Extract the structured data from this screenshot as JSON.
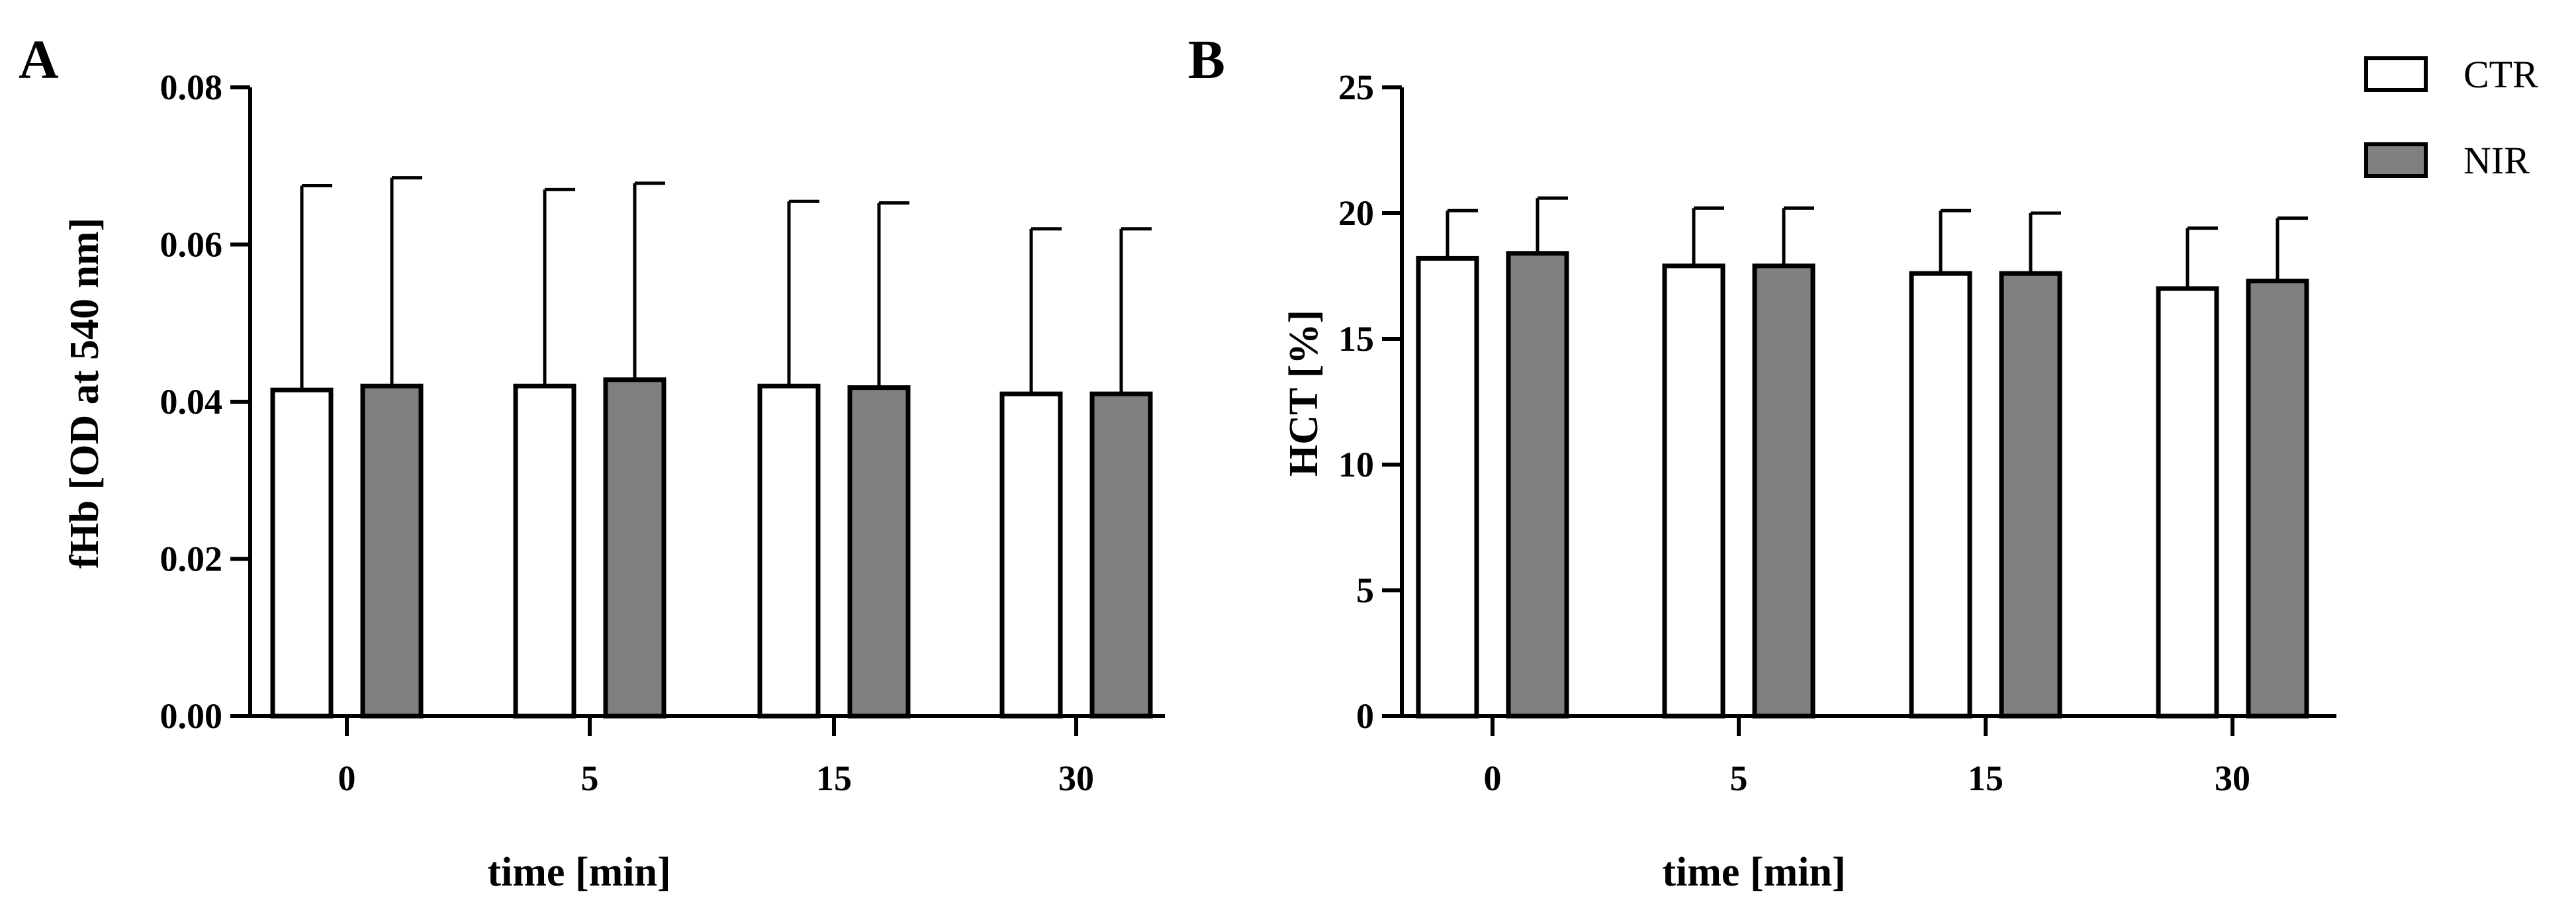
{
  "legend": {
    "placement": "top-right",
    "items": [
      {
        "label": "CTR",
        "color": "#ffffff"
      },
      {
        "label": "NIR",
        "color": "#808080"
      }
    ]
  },
  "chart_data": [
    {
      "type": "bar",
      "panel_label": "A",
      "title": "",
      "xlabel": "time [min]",
      "ylabel": "fHb [OD at 540 nm]",
      "categories": [
        "0",
        "5",
        "15",
        "30"
      ],
      "ylim": [
        0,
        0.08
      ],
      "yticks": [
        "0.00",
        "0.02",
        "0.04",
        "0.06",
        "0.08"
      ],
      "grid": false,
      "series": [
        {
          "name": "CTR",
          "color": "#ffffff",
          "values": [
            0.0415,
            0.042,
            0.042,
            0.041
          ],
          "errors": [
            0.026,
            0.025,
            0.0235,
            0.021
          ]
        },
        {
          "name": "NIR",
          "color": "#808080",
          "values": [
            0.042,
            0.0428,
            0.0418,
            0.041
          ],
          "errors": [
            0.0265,
            0.025,
            0.0235,
            0.021
          ]
        }
      ]
    },
    {
      "type": "bar",
      "panel_label": "B",
      "title": "",
      "xlabel": "time [min]",
      "ylabel": "HCT [%]",
      "categories": [
        "0",
        "5",
        "15",
        "30"
      ],
      "ylim": [
        0,
        25
      ],
      "yticks": [
        "0",
        "5",
        "10",
        "15",
        "20",
        "25"
      ],
      "grid": false,
      "series": [
        {
          "name": "CTR",
          "color": "#ffffff",
          "values": [
            18.2,
            17.9,
            17.6,
            17.0
          ],
          "errors": [
            1.9,
            2.3,
            2.5,
            2.4
          ]
        },
        {
          "name": "NIR",
          "color": "#808080",
          "values": [
            18.4,
            17.9,
            17.6,
            17.3
          ],
          "errors": [
            2.2,
            2.3,
            2.4,
            2.5
          ]
        }
      ]
    }
  ]
}
